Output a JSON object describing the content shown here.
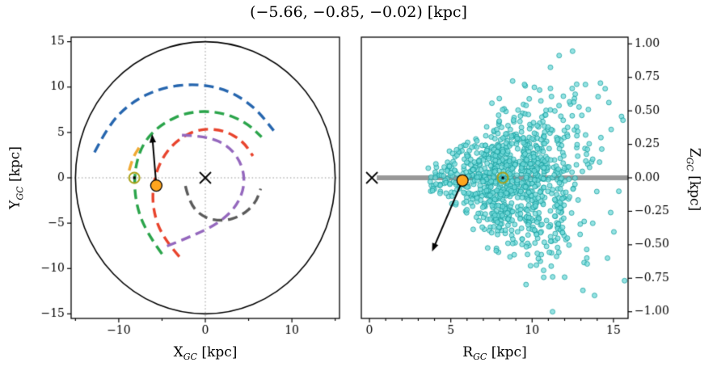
{
  "title": "(−5.66, −0.85, −0.02) [kpc]",
  "chart_data": [
    {
      "name": "galactic-plane-face-on-view",
      "type": "line",
      "xlabel": {
        "base": "X",
        "sub": "GC",
        "unit": " [kpc]"
      },
      "ylabel": {
        "base": "Y",
        "sub": "GC",
        "unit": " [kpc]"
      },
      "xlim": [
        -15.5,
        15.5
      ],
      "ylim": [
        -15.5,
        15.5
      ],
      "xticks": [
        -10,
        0,
        10
      ],
      "xtick_labels": [
        "−10",
        "0",
        "10"
      ],
      "xminors": [
        -15,
        -5,
        5,
        15
      ],
      "yticks": [
        -15,
        -10,
        -5,
        0,
        5,
        10,
        15
      ],
      "ytick_labels": [
        "−15",
        "−10",
        "−5",
        "0",
        "5",
        "10",
        "15"
      ],
      "crosshair": {
        "x": 0,
        "y": 0,
        "style": "dotted",
        "color": "#909090"
      },
      "outer_circle": {
        "radius": 15,
        "color": "#000000"
      },
      "spiral_arms": [
        {
          "name": "outer-arm",
          "color": "#2565ae",
          "points": [
            [
              -12.8,
              2.8
            ],
            [
              -11.2,
              5.8
            ],
            [
              -8.6,
              8.3
            ],
            [
              -5.2,
              9.9
            ],
            [
              -1.2,
              10.4
            ],
            [
              2.6,
              9.7
            ],
            [
              5.7,
              7.8
            ],
            [
              7.9,
              5.2
            ]
          ]
        },
        {
          "name": "perseus-arm",
          "color": "#2aa44a",
          "points": [
            [
              -5.0,
              -8.4
            ],
            [
              -6.9,
              -5.9
            ],
            [
              -8.1,
              -2.6
            ],
            [
              -8.2,
              0.9
            ],
            [
              -7.2,
              3.9
            ],
            [
              -5.0,
              6.0
            ],
            [
              -1.9,
              7.3
            ],
            [
              1.6,
              7.3
            ],
            [
              4.6,
              6.2
            ],
            [
              6.5,
              4.5
            ]
          ]
        },
        {
          "name": "local-arm",
          "color": "#f0a832",
          "points": [
            [
              -8.8,
              0.8
            ],
            [
              -8.4,
              2.2
            ],
            [
              -7.6,
              3.4
            ]
          ]
        },
        {
          "name": "sagittarius-arm",
          "color": "#e8432c",
          "points": [
            [
              -3.0,
              -8.7
            ],
            [
              -4.9,
              -6.6
            ],
            [
              -6.0,
              -3.8
            ],
            [
              -6.1,
              -0.9
            ],
            [
              -5.2,
              1.9
            ],
            [
              -3.4,
              4.1
            ],
            [
              -0.8,
              5.4
            ],
            [
              2.0,
              5.3
            ],
            [
              4.3,
              4.1
            ],
            [
              5.5,
              2.4
            ]
          ]
        },
        {
          "name": "scutum-arm",
          "color": "#9467bd",
          "points": [
            [
              -2.7,
              4.7
            ],
            [
              0.2,
              4.6
            ],
            [
              2.7,
              3.5
            ],
            [
              4.2,
              1.6
            ],
            [
              4.6,
              -0.8
            ],
            [
              3.6,
              -3.2
            ],
            [
              1.4,
              -5.1
            ],
            [
              -1.5,
              -6.4
            ],
            [
              -4.6,
              -7.6
            ]
          ]
        },
        {
          "name": "norma-arm",
          "color": "#5a5a5a",
          "points": [
            [
              -2.3,
              -0.9
            ],
            [
              -1.8,
              -2.9
            ],
            [
              -0.2,
              -4.4
            ],
            [
              2.0,
              -4.8
            ],
            [
              4.2,
              -4.2
            ],
            [
              5.8,
              -2.8
            ],
            [
              6.4,
              -1.2
            ]
          ]
        }
      ],
      "markers": {
        "galactic_center": {
          "symbol": "x",
          "x": 0,
          "y": 0,
          "color": "#000000"
        },
        "sun": {
          "symbol": "odot",
          "x": -8.2,
          "y": 0,
          "color": "#aaa118"
        },
        "target_star": {
          "symbol": "circle",
          "x": -5.66,
          "y": -0.85,
          "color": "#ffa51e"
        },
        "velocity_arrow": {
          "from": [
            -5.66,
            -0.85
          ],
          "to": [
            -6.15,
            4.8
          ],
          "color": "#000000"
        }
      }
    },
    {
      "name": "radial-vertical-view",
      "type": "scatter",
      "xlabel": {
        "base": "R",
        "sub": "GC",
        "unit": " [kpc]"
      },
      "ylabel": {
        "base": "Z",
        "sub": "GC",
        "unit": " [kpc]"
      },
      "xlim": [
        -0.5,
        15.9
      ],
      "ylim": [
        -1.05,
        1.05
      ],
      "xticks": [
        0,
        5,
        10,
        15
      ],
      "xtick_labels": [
        "0",
        "5",
        "10",
        "15"
      ],
      "xminors": [
        1,
        2,
        3,
        4,
        6,
        7,
        8,
        9,
        11,
        12,
        13,
        14
      ],
      "yticks": [
        -1.0,
        -0.75,
        -0.5,
        -0.25,
        0.0,
        0.25,
        0.5,
        0.75,
        1.0
      ],
      "ytick_labels": [
        "−1.00",
        "−0.75",
        "−0.50",
        "−0.25",
        "0.00",
        "0.25",
        "0.50",
        "0.75",
        "1.00"
      ],
      "midplane_line": {
        "y": 0,
        "x_start": 0.45,
        "x_end": 15.9,
        "color": "#989898"
      },
      "scatter_spec": {
        "n": 1000,
        "seed": 20240613,
        "r_mean": 8.9,
        "r_sigma": 2.3,
        "r_min": 3.4,
        "r_max": 15.7,
        "z_sd_base": 0.035,
        "z_sd_slope": 0.038,
        "z_clip": 1.02,
        "fill_color": "#72d9d9",
        "edge_color": "#0f9b9b"
      },
      "markers": {
        "galactic_center": {
          "symbol": "x",
          "x": 0.15,
          "y": 0,
          "color": "#000000"
        },
        "sun": {
          "symbol": "odot",
          "x": 8.2,
          "y": 0,
          "color": "#aaa118"
        },
        "target_star": {
          "symbol": "circle",
          "x": 5.72,
          "y": -0.02,
          "color": "#ffa51e"
        },
        "velocity_arrow": {
          "from": [
            5.72,
            -0.02
          ],
          "to": [
            3.85,
            -0.55
          ],
          "color": "#000000"
        }
      }
    }
  ]
}
